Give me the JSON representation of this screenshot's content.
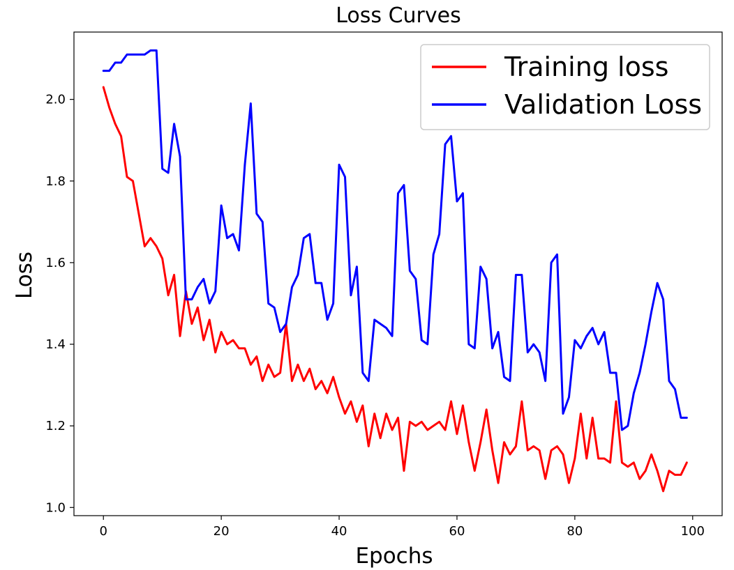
{
  "chart_data": {
    "type": "line",
    "title": "Loss Curves",
    "xlabel": "Epochs",
    "ylabel": "Loss",
    "xlim": [
      -5,
      105
    ],
    "ylim": [
      0.98,
      2.165
    ],
    "xticks": [
      0,
      20,
      40,
      60,
      80,
      100
    ],
    "yticks": [
      1.0,
      1.2,
      1.4,
      1.6,
      1.8,
      2.0
    ],
    "xtick_labels": [
      "0",
      "20",
      "40",
      "60",
      "80",
      "100"
    ],
    "ytick_labels": [
      "1.0",
      "1.2",
      "1.4",
      "1.6",
      "1.8",
      "2.0"
    ],
    "grid": false,
    "legend_position": "top-right",
    "series": [
      {
        "name": "Training loss",
        "color": "#ff0000",
        "values": [
          2.03,
          1.98,
          1.94,
          1.91,
          1.81,
          1.8,
          1.72,
          1.64,
          1.66,
          1.64,
          1.61,
          1.52,
          1.57,
          1.42,
          1.53,
          1.45,
          1.49,
          1.41,
          1.46,
          1.38,
          1.43,
          1.4,
          1.41,
          1.39,
          1.39,
          1.35,
          1.37,
          1.31,
          1.35,
          1.32,
          1.33,
          1.45,
          1.31,
          1.35,
          1.31,
          1.34,
          1.29,
          1.31,
          1.28,
          1.32,
          1.27,
          1.23,
          1.26,
          1.21,
          1.25,
          1.15,
          1.23,
          1.17,
          1.23,
          1.19,
          1.22,
          1.09,
          1.21,
          1.2,
          1.21,
          1.19,
          1.2,
          1.21,
          1.19,
          1.26,
          1.18,
          1.25,
          1.16,
          1.09,
          1.16,
          1.24,
          1.14,
          1.06,
          1.16,
          1.13,
          1.15,
          1.26,
          1.14,
          1.15,
          1.14,
          1.07,
          1.14,
          1.15,
          1.13,
          1.06,
          1.12,
          1.23,
          1.12,
          1.22,
          1.12,
          1.12,
          1.11,
          1.26,
          1.11,
          1.1,
          1.11,
          1.07,
          1.09,
          1.13,
          1.09,
          1.04,
          1.09,
          1.08,
          1.08,
          1.11
        ]
      },
      {
        "name": "Validation Loss",
        "color": "#0000ff",
        "values": [
          2.07,
          2.07,
          2.09,
          2.09,
          2.11,
          2.11,
          2.11,
          2.11,
          2.12,
          2.12,
          1.83,
          1.82,
          1.94,
          1.86,
          1.51,
          1.51,
          1.54,
          1.56,
          1.5,
          1.53,
          1.74,
          1.66,
          1.67,
          1.63,
          1.84,
          1.99,
          1.72,
          1.7,
          1.5,
          1.49,
          1.43,
          1.45,
          1.54,
          1.57,
          1.66,
          1.67,
          1.55,
          1.55,
          1.46,
          1.5,
          1.84,
          1.81,
          1.52,
          1.59,
          1.33,
          1.31,
          1.46,
          1.45,
          1.44,
          1.42,
          1.77,
          1.79,
          1.58,
          1.56,
          1.41,
          1.4,
          1.62,
          1.67,
          1.89,
          1.91,
          1.75,
          1.77,
          1.4,
          1.39,
          1.59,
          1.56,
          1.39,
          1.43,
          1.32,
          1.31,
          1.57,
          1.57,
          1.38,
          1.4,
          1.38,
          1.31,
          1.6,
          1.62,
          1.23,
          1.27,
          1.41,
          1.39,
          1.42,
          1.44,
          1.4,
          1.43,
          1.33,
          1.33,
          1.19,
          1.2,
          1.28,
          1.33,
          1.4,
          1.48,
          1.55,
          1.51,
          1.31,
          1.29,
          1.22,
          1.22
        ]
      }
    ]
  }
}
